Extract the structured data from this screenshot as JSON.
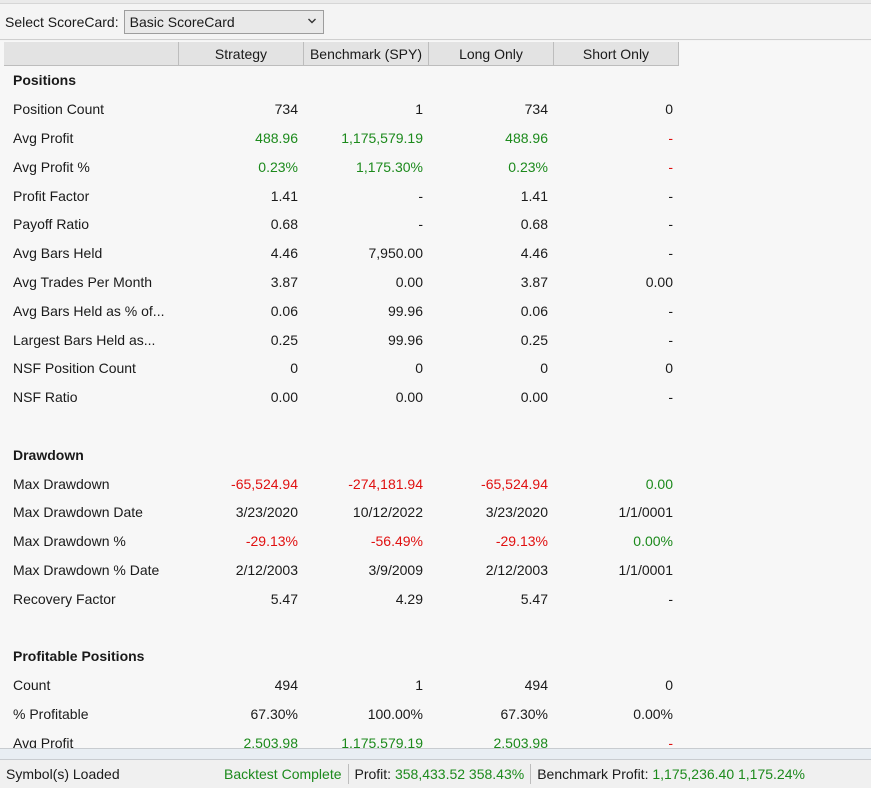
{
  "toolbar": {
    "label": "Select ScoreCard:",
    "selected": "Basic ScoreCard"
  },
  "columns": [
    "Strategy",
    "Benchmark (SPY)",
    "Long Only",
    "Short Only"
  ],
  "rows": [
    {
      "type": "section",
      "label": "Positions"
    },
    {
      "label": "Position Count",
      "values": [
        "734",
        "1",
        "734",
        "0"
      ],
      "colors": [
        "",
        "",
        "",
        ""
      ]
    },
    {
      "label": "Avg Profit",
      "values": [
        "488.96",
        "1,175,579.19",
        "488.96",
        "-"
      ],
      "colors": [
        "green",
        "green",
        "green",
        "red"
      ]
    },
    {
      "label": "Avg Profit %",
      "values": [
        "0.23%",
        "1,175.30%",
        "0.23%",
        "-"
      ],
      "colors": [
        "green",
        "green",
        "green",
        "red"
      ]
    },
    {
      "label": "Profit Factor",
      "values": [
        "1.41",
        "-",
        "1.41",
        "-"
      ],
      "colors": [
        "",
        "",
        "",
        ""
      ]
    },
    {
      "label": "Payoff Ratio",
      "values": [
        "0.68",
        "-",
        "0.68",
        "-"
      ],
      "colors": [
        "",
        "",
        "",
        ""
      ]
    },
    {
      "label": "Avg Bars Held",
      "values": [
        "4.46",
        "7,950.00",
        "4.46",
        "-"
      ],
      "colors": [
        "",
        "",
        "",
        ""
      ]
    },
    {
      "label": "Avg Trades Per Month",
      "values": [
        "3.87",
        "0.00",
        "3.87",
        "0.00"
      ],
      "colors": [
        "",
        "",
        "",
        ""
      ]
    },
    {
      "label": "Avg Bars Held as % of...",
      "values": [
        "0.06",
        "99.96",
        "0.06",
        "-"
      ],
      "colors": [
        "",
        "",
        "",
        ""
      ]
    },
    {
      "label": "Largest Bars Held as...",
      "values": [
        "0.25",
        "99.96",
        "0.25",
        "-"
      ],
      "colors": [
        "",
        "",
        "",
        ""
      ]
    },
    {
      "label": "NSF Position Count",
      "values": [
        "0",
        "0",
        "0",
        "0"
      ],
      "colors": [
        "",
        "",
        "",
        ""
      ]
    },
    {
      "label": "NSF Ratio",
      "values": [
        "0.00",
        "0.00",
        "0.00",
        "-"
      ],
      "colors": [
        "",
        "",
        "",
        ""
      ]
    },
    {
      "type": "blank"
    },
    {
      "type": "section",
      "label": "Drawdown"
    },
    {
      "label": "Max Drawdown",
      "values": [
        "-65,524.94",
        "-274,181.94",
        "-65,524.94",
        "0.00"
      ],
      "colors": [
        "red",
        "red",
        "red",
        "green"
      ]
    },
    {
      "label": "Max Drawdown Date",
      "values": [
        "3/23/2020",
        "10/12/2022",
        "3/23/2020",
        "1/1/0001"
      ],
      "colors": [
        "",
        "",
        "",
        ""
      ]
    },
    {
      "label": "Max Drawdown %",
      "values": [
        "-29.13%",
        "-56.49%",
        "-29.13%",
        "0.00%"
      ],
      "colors": [
        "red",
        "red",
        "red",
        "green"
      ]
    },
    {
      "label": "Max Drawdown % Date",
      "values": [
        "2/12/2003",
        "3/9/2009",
        "2/12/2003",
        "1/1/0001"
      ],
      "colors": [
        "",
        "",
        "",
        ""
      ]
    },
    {
      "label": "Recovery Factor",
      "values": [
        "5.47",
        "4.29",
        "5.47",
        "-"
      ],
      "colors": [
        "",
        "",
        "",
        ""
      ]
    },
    {
      "type": "blank"
    },
    {
      "type": "section",
      "label": "Profitable Positions"
    },
    {
      "label": "Count",
      "values": [
        "494",
        "1",
        "494",
        "0"
      ],
      "colors": [
        "",
        "",
        "",
        ""
      ]
    },
    {
      "label": "% Profitable",
      "values": [
        "67.30%",
        "100.00%",
        "67.30%",
        "0.00%"
      ],
      "colors": [
        "",
        "",
        "",
        ""
      ]
    },
    {
      "label": "Avg Profit",
      "values": [
        "2,503.98",
        "1,175,579.19",
        "2,503.98",
        "-"
      ],
      "colors": [
        "green",
        "green",
        "green",
        "red"
      ]
    }
  ],
  "status": {
    "symbols": "Symbol(s) Loaded",
    "backtest": "Backtest Complete",
    "profit_label": "Profit:",
    "profit_value": "358,433.52 358.43%",
    "benchmark_label": "Benchmark Profit:",
    "benchmark_value": "1,175,236.40 1,175.24%"
  },
  "colors": {
    "positive": "#1c8a1c",
    "negative": "#e01010"
  }
}
